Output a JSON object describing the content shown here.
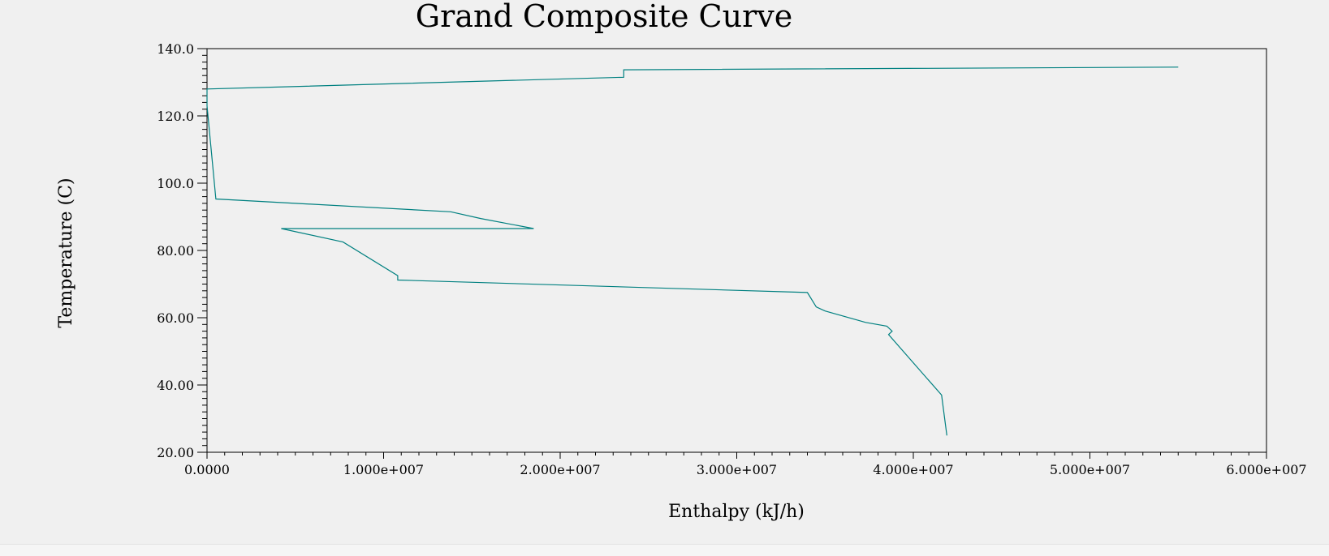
{
  "chart_data": {
    "type": "line",
    "title": "Grand Composite Curve",
    "xlabel": "Enthalpy (kJ/h)",
    "ylabel": "Temperature (C)",
    "xlim": [
      0,
      60000000
    ],
    "ylim": [
      20,
      140
    ],
    "x_ticks": [
      {
        "value": 0,
        "label": "0.0000"
      },
      {
        "value": 10000000,
        "label": "1.000e+007"
      },
      {
        "value": 20000000,
        "label": "2.000e+007"
      },
      {
        "value": 30000000,
        "label": "3.000e+007"
      },
      {
        "value": 40000000,
        "label": "4.000e+007"
      },
      {
        "value": 50000000,
        "label": "5.000e+007"
      },
      {
        "value": 60000000,
        "label": "6.000e+007"
      }
    ],
    "y_ticks": [
      {
        "value": 20,
        "label": "20.00"
      },
      {
        "value": 40,
        "label": "40.00"
      },
      {
        "value": 60,
        "label": "60.00"
      },
      {
        "value": 80,
        "label": "80.00"
      },
      {
        "value": 100,
        "label": "100.0"
      },
      {
        "value": 120,
        "label": "120.0"
      },
      {
        "value": 140,
        "label": "140.0"
      }
    ],
    "grid": false,
    "line_color": "#008080",
    "series": [
      {
        "x": [
          55000000,
          23600000,
          23600000,
          0,
          0,
          500000,
          13800000,
          15500000,
          18500000,
          4200000,
          7700000,
          10800000,
          10800000,
          34000000,
          34500000,
          35000000,
          37300000,
          38500000,
          38800000,
          38600000,
          41600000,
          41900000
        ],
        "y": [
          134.5,
          133.7,
          131.5,
          128.0,
          123.0,
          95.3,
          91.5,
          89.5,
          86.5,
          86.5,
          82.5,
          72.5,
          71.2,
          67.5,
          63.2,
          62.0,
          58.6,
          57.5,
          56.0,
          55.0,
          37.0,
          25.0
        ]
      }
    ]
  }
}
